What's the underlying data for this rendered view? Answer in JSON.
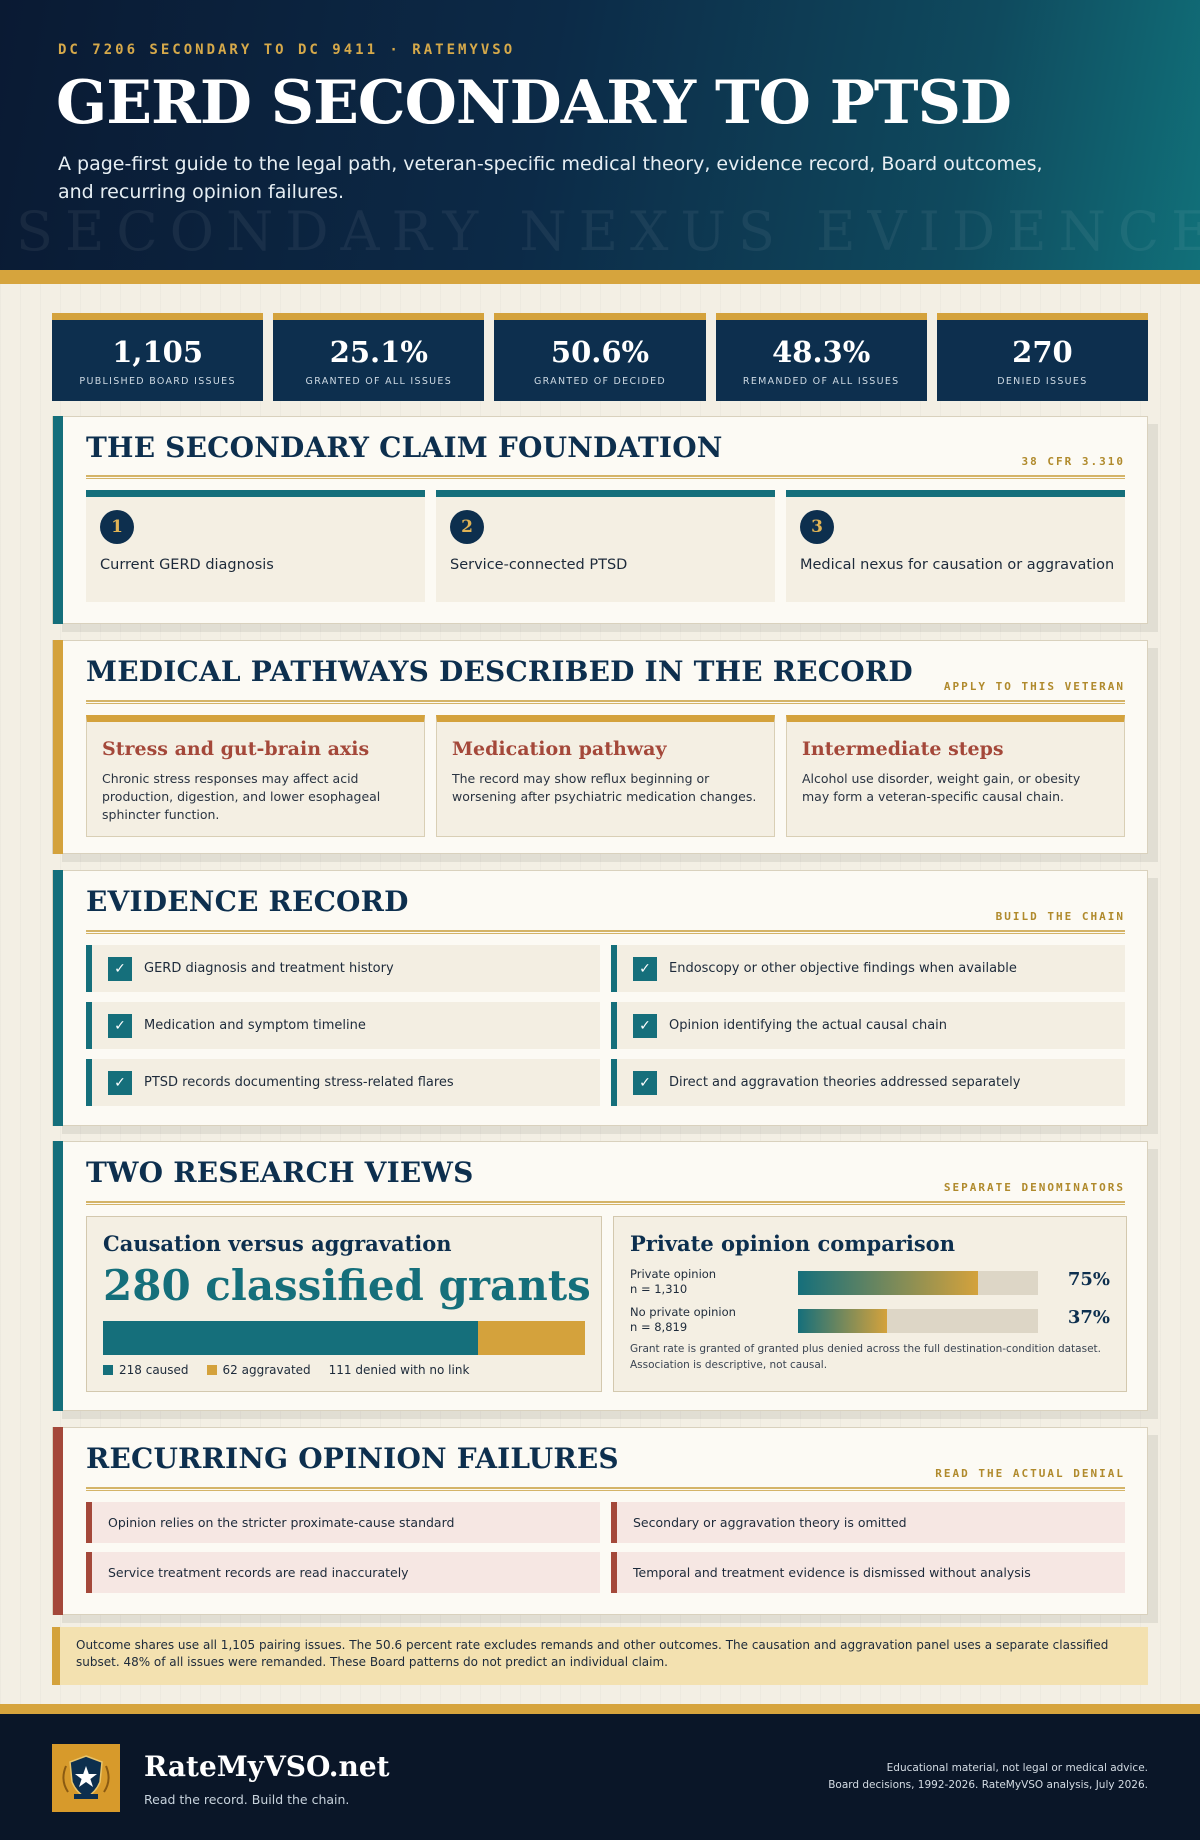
{
  "header": {
    "kicker": "DC 7206 SECONDARY TO DC 9411 · RATEMYVSO",
    "title": "GERD SECONDARY TO PTSD",
    "subtitle": "A page-first guide to the legal path, veteran-specific medical theory, evidence record, Board outcomes, and recurring opinion failures.",
    "ghost_text": "SECONDARY NEXUS EVIDENCE"
  },
  "stats": [
    {
      "value": "1,105",
      "label": "PUBLISHED BOARD ISSUES"
    },
    {
      "value": "25.1%",
      "label": "GRANTED OF ALL ISSUES"
    },
    {
      "value": "50.6%",
      "label": "GRANTED OF DECIDED"
    },
    {
      "value": "48.3%",
      "label": "REMANDED OF ALL ISSUES"
    },
    {
      "value": "270",
      "label": "DENIED ISSUES"
    }
  ],
  "foundation": {
    "title": "THE SECONDARY CLAIM FOUNDATION",
    "tag": "38 CFR 3.310",
    "items": [
      {
        "num": "1",
        "text": "Current GERD diagnosis"
      },
      {
        "num": "2",
        "text": "Service-connected PTSD"
      },
      {
        "num": "3",
        "text": "Medical nexus for causation or aggravation"
      }
    ]
  },
  "pathways": {
    "title": "MEDICAL PATHWAYS DESCRIBED IN THE RECORD",
    "tag": "APPLY TO THIS VETERAN",
    "items": [
      {
        "title": "Stress and gut-brain axis",
        "text": "Chronic stress responses may affect acid production, digestion, and lower esophageal sphincter function."
      },
      {
        "title": "Medication pathway",
        "text": "The record may show reflux beginning or worsening after psychiatric medication changes."
      },
      {
        "title": "Intermediate steps",
        "text": "Alcohol use disorder, weight gain, or obesity may form a veteran-specific causal chain."
      }
    ]
  },
  "evidence": {
    "title": "EVIDENCE RECORD",
    "tag": "BUILD THE CHAIN",
    "check_glyph": "✓",
    "items": [
      "GERD diagnosis and treatment history",
      "Endoscopy or other objective findings when available",
      "Medication and symptom timeline",
      "Opinion identifying the actual causal chain",
      "PTSD records documenting stress-related flares",
      "Direct and aggravation theories addressed separately"
    ]
  },
  "research": {
    "title": "TWO RESEARCH VIEWS",
    "tag": "SEPARATE DENOMINATORS",
    "causation": {
      "heading": "Causation versus aggravation",
      "big": "280 classified grants",
      "caused": 218,
      "aggravated": 62,
      "legend_caused": "218 caused",
      "legend_aggravated": "62 aggravated",
      "legend_denied": "111 denied with no link"
    },
    "private": {
      "heading": "Private opinion comparison",
      "rows": [
        {
          "label1": "Private opinion",
          "label2": "n = 1,310",
          "pct": 75,
          "pct_text": "75%"
        },
        {
          "label1": "No private opinion",
          "label2": "n = 8,819",
          "pct": 37,
          "pct_text": "37%"
        }
      ],
      "note1": "Grant rate is granted of granted plus denied across the full destination-condition dataset.",
      "note2": "Association is descriptive, not causal."
    }
  },
  "failures": {
    "title": "RECURRING OPINION FAILURES",
    "tag": "READ THE ACTUAL DENIAL",
    "items": [
      "Opinion relies on the stricter proximate-cause standard",
      "Secondary or aggravation theory is omitted",
      "Service treatment records are read inaccurately",
      "Temporal and treatment evidence is dismissed without analysis"
    ]
  },
  "note": "Outcome shares use all 1,105 pairing issues. The 50.6 percent rate excludes remands and other outcomes. The causation and aggravation panel uses a separate classified subset. 48% of all issues were remanded. These Board patterns do not predict an individual claim.",
  "footer": {
    "brand": "RateMyVSO.net",
    "tagline": "Read the record. Build the chain.",
    "fine1": "Educational material, not legal or medical advice.",
    "fine2": "Board decisions, 1992-2026. RateMyVSO analysis, July 2026."
  },
  "colors": {
    "navy": "#0d2f4e",
    "teal": "#156f7b",
    "gold": "#d4a23c",
    "rust": "#a4483a"
  }
}
